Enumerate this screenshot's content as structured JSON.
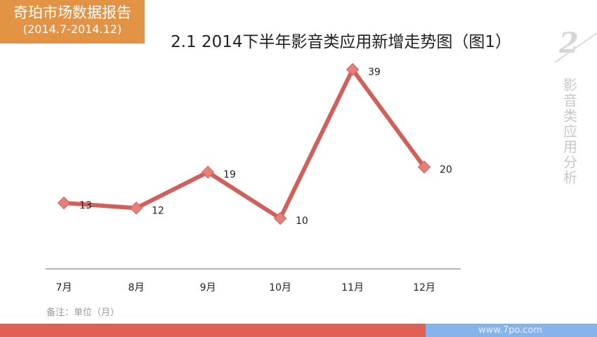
{
  "header": {
    "badge_line1": "奇珀市场数据报告",
    "badge_line2": "(2014.7-2014.12)",
    "badge_color": "#e39344"
  },
  "title": "2.1  2014下半年影音类应用新增走势图（图1）",
  "side": {
    "section_number": "2",
    "section_label": "影音类应用分析"
  },
  "chart_data": {
    "type": "line",
    "title": "2.1 2014下半年影音类应用新增走势图（图1）",
    "categories": [
      "7月",
      "8月",
      "9月",
      "10月",
      "11月",
      "12月"
    ],
    "series": [
      {
        "name": "影音类应用新增",
        "values": [
          13,
          12,
          19,
          10,
          39,
          20
        ],
        "color": "#d0605a"
      }
    ],
    "xlabel": "",
    "ylabel": "",
    "data_labels": true,
    "grid": false,
    "legend": "none",
    "marker": "diamond"
  },
  "note": "备注：单位（月）",
  "footer": {
    "website": "www.7po.com",
    "red_color": "#e06055",
    "blue_color": "#86b4ea"
  }
}
